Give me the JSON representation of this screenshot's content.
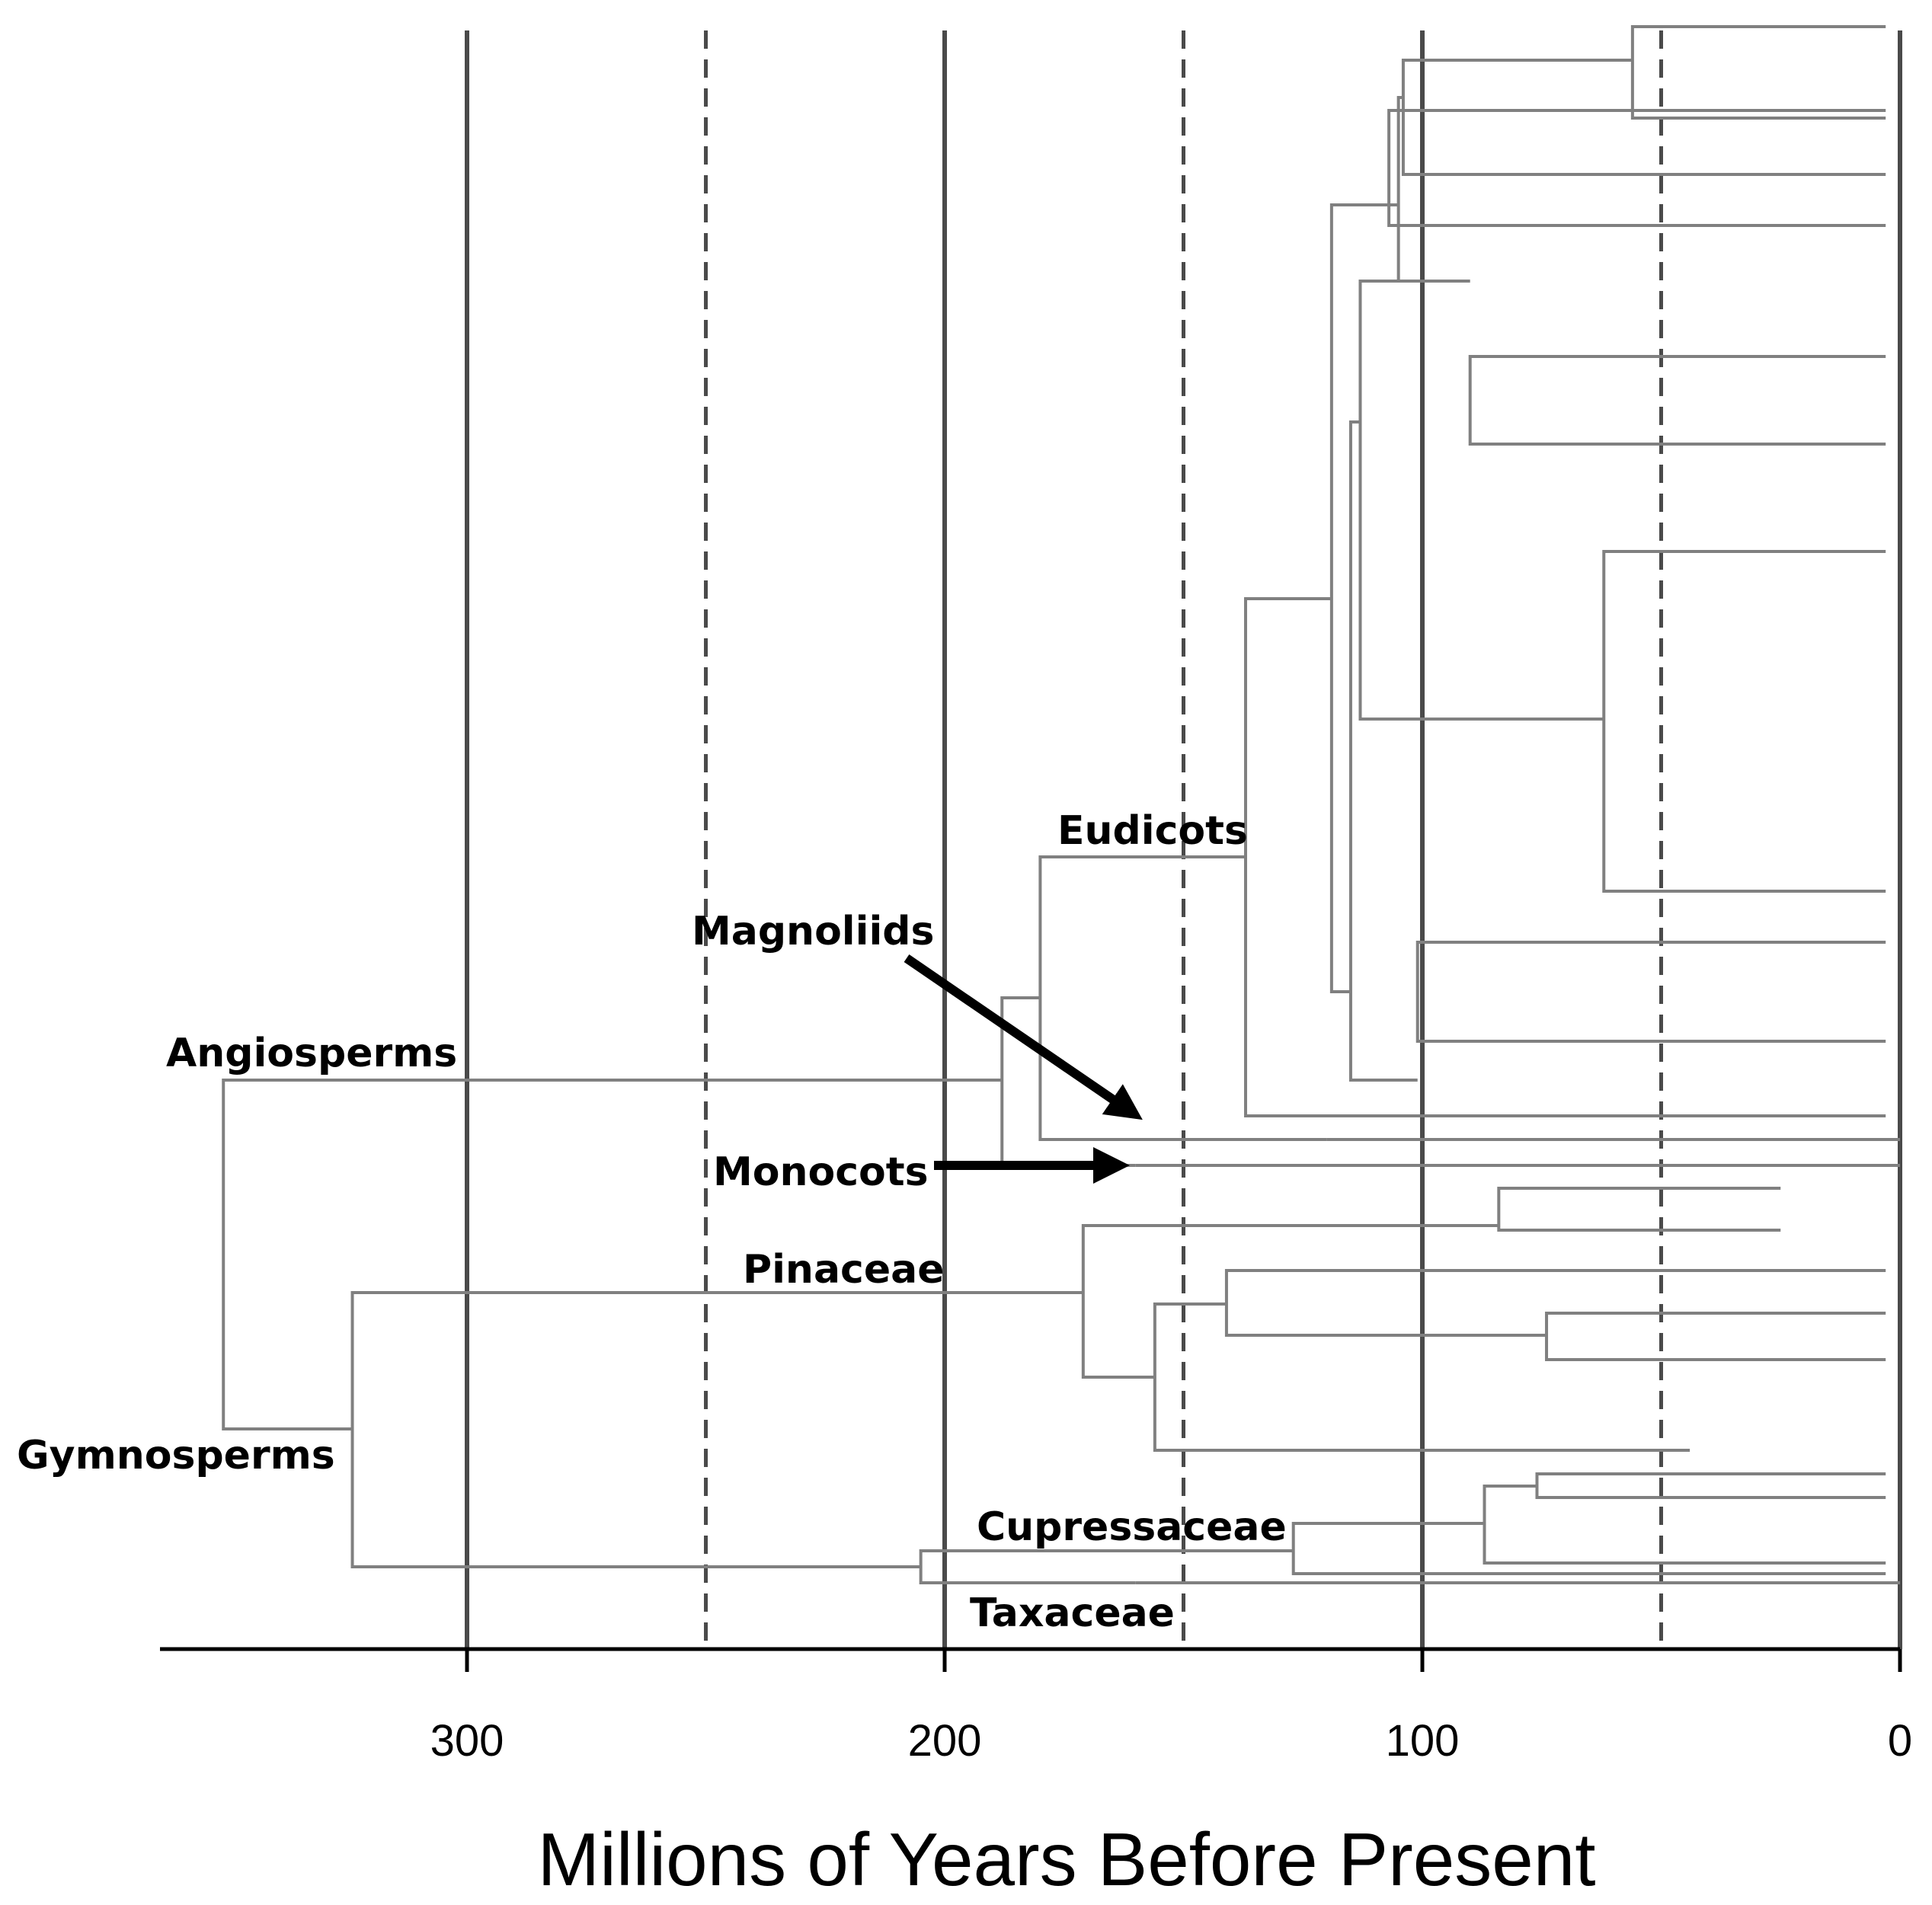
{
  "chart_data": {
    "type": "dendrogram",
    "title": "",
    "xlabel": "Millions of Years Before Present",
    "xlim": [
      362,
      0
    ],
    "ticks": [
      {
        "value": 300,
        "label": "300"
      },
      {
        "value": 200,
        "label": "200"
      },
      {
        "value": 100,
        "label": "100"
      },
      {
        "value": 0,
        "label": "0"
      }
    ],
    "gridlines_solid": [
      300,
      200,
      100,
      0
    ],
    "gridlines_dashed": [
      250,
      150,
      50
    ],
    "clades": [
      {
        "name": "Angiosperms",
        "label": "Angiosperms",
        "divergence_mya": 188
      },
      {
        "name": "Gymnosperms",
        "label": "Gymnosperms",
        "divergence_mya": 324
      },
      {
        "name": "Eudicots",
        "label": "Eudicots",
        "divergence_mya": 137
      },
      {
        "name": "Magnoliids",
        "label": "Magnoliids",
        "divergence_mya": 180
      },
      {
        "name": "Monocots",
        "label": "Monocots",
        "divergence_mya": 188
      },
      {
        "name": "Pinaceae",
        "label": "Pinaceae",
        "divergence_mya": 171
      },
      {
        "name": "Cupressaceae",
        "label": "Cupressaceae",
        "divergence_mya": 127
      },
      {
        "name": "Taxaceae",
        "label": "Taxaceae",
        "divergence_mya": 205
      }
    ],
    "root_divergence_mya": 351,
    "colors": {
      "branch": "#808080",
      "grid": "#4a4a4a",
      "axis": "#000000"
    }
  }
}
